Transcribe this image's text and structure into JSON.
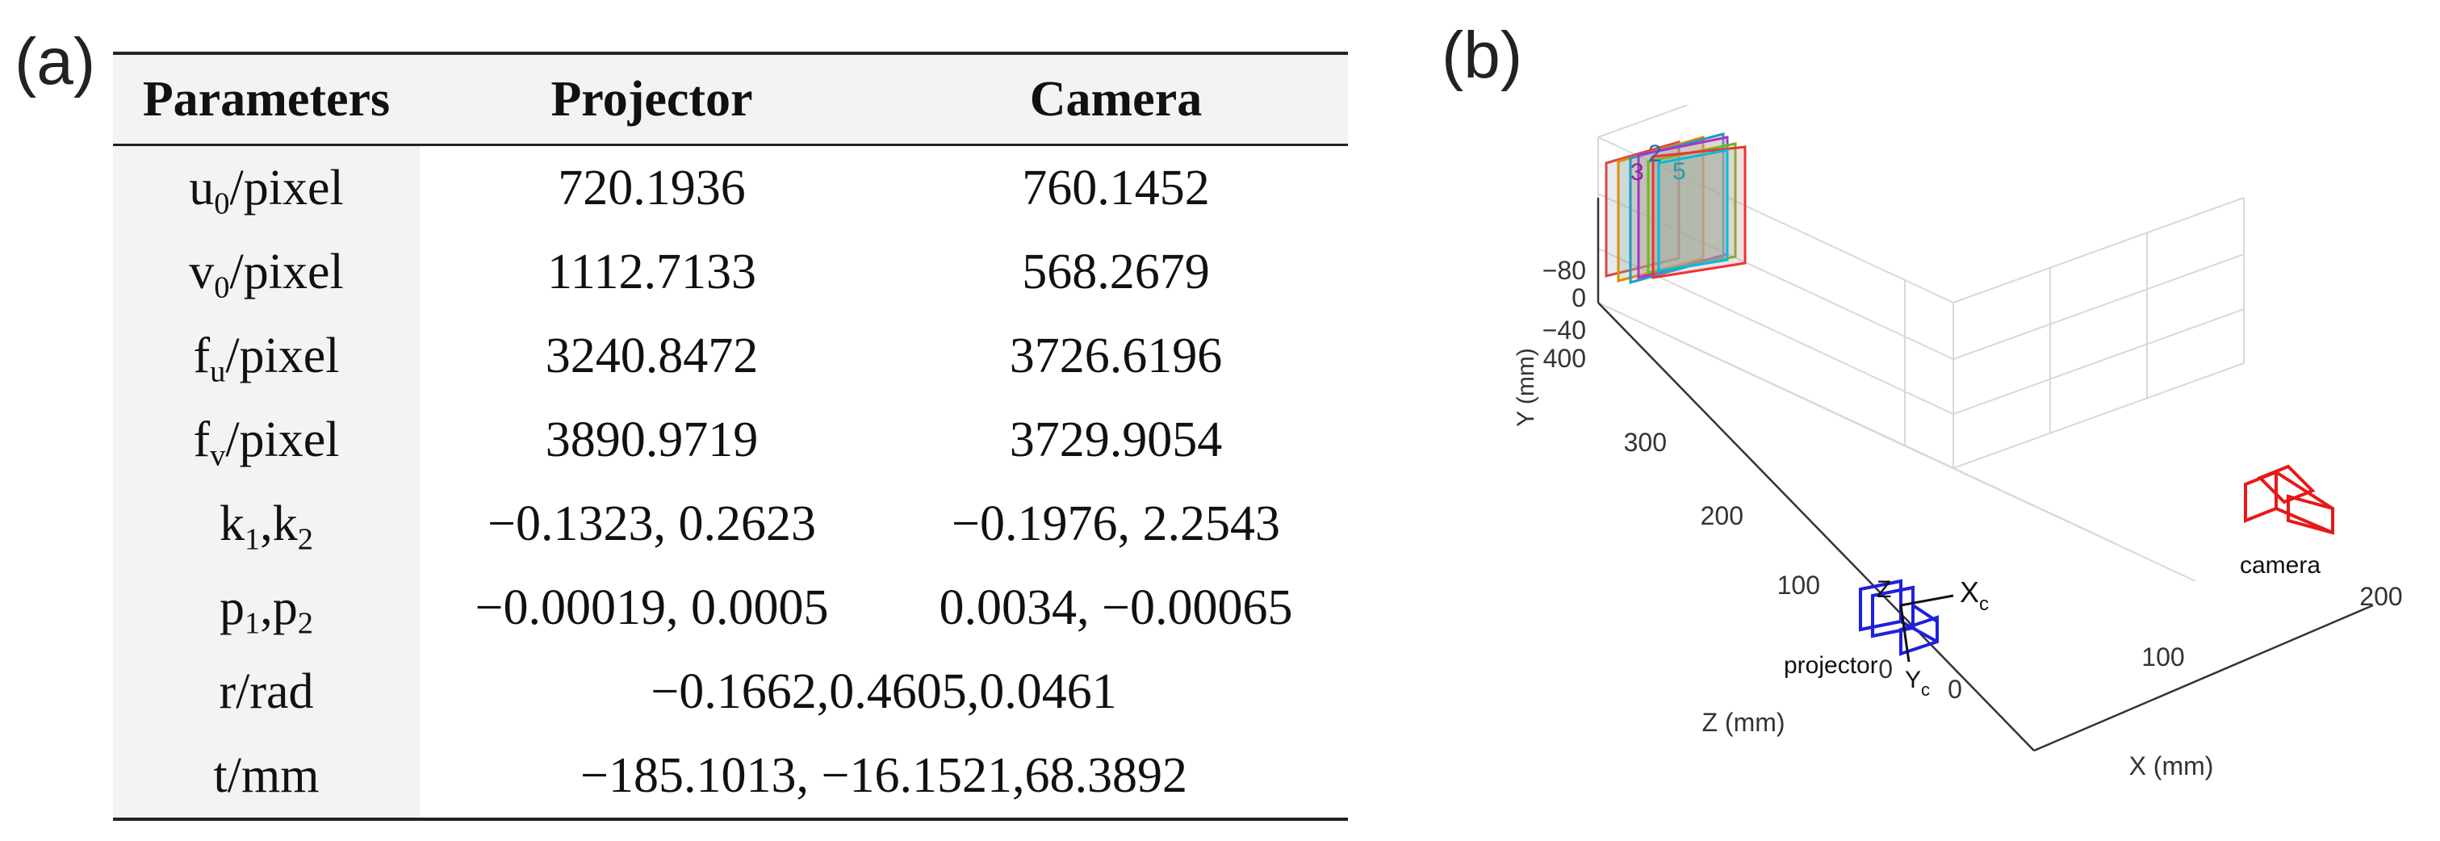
{
  "panel_a_label": "(a)",
  "panel_b_label": "(b)",
  "table": {
    "headers": [
      "Parameters",
      "Projector",
      "Camera"
    ],
    "rows": [
      {
        "param_base": "u",
        "param_sub": "0",
        "param_rest": "/pixel",
        "projector": "720.1936",
        "camera": "760.1452"
      },
      {
        "param_base": "v",
        "param_sub": "0",
        "param_rest": "/pixel",
        "projector": "1112.7133",
        "camera": "568.2679"
      },
      {
        "param_base": "f",
        "param_sub": "u",
        "param_rest": "/pixel",
        "projector": "3240.8472",
        "camera": "3726.6196"
      },
      {
        "param_base": "f",
        "param_sub": "v",
        "param_rest": "/pixel",
        "projector": "3890.9719",
        "camera": "3729.9054"
      },
      {
        "param_base": "k",
        "param_sub": "1",
        "param_rest": ",k",
        "param_sub2": "2",
        "projector": "−0.1323, 0.2623",
        "camera": "−0.1976, 2.2543"
      },
      {
        "param_base": "p",
        "param_sub": "1",
        "param_rest": ",p",
        "param_sub2": "2",
        "projector": "−0.00019, 0.0005",
        "camera": "0.0034, −0.00065"
      }
    ],
    "shared_rows": [
      {
        "param": "r/rad",
        "value": "−0.1662,0.4605,0.0461"
      },
      {
        "param": "t/mm",
        "value": "−185.1013, −16.1521,68.3892"
      }
    ]
  },
  "plot3d": {
    "y_axis_label": "Y (mm)",
    "z_axis_label": "Z (mm)",
    "x_axis_label": "X (mm)",
    "y_ticks": [
      "−80",
      "−40",
      "0"
    ],
    "z_ticks": [
      "400",
      "300",
      "200",
      "100",
      "0"
    ],
    "x_ticks": [
      "0",
      "100",
      "200"
    ],
    "projector_label": "projector",
    "camera_label": "camera",
    "axis_xc": "X",
    "axis_yc": "Y",
    "axis_sub_c": "c",
    "axis_z": "Z",
    "board_tags": "3",
    "board_tag2": "2",
    "board_tag5": "5",
    "colors": {
      "projector": "#1f1fe0",
      "camera": "#e81818",
      "grid": "#d8d8d8",
      "axes": "#333333"
    }
  }
}
